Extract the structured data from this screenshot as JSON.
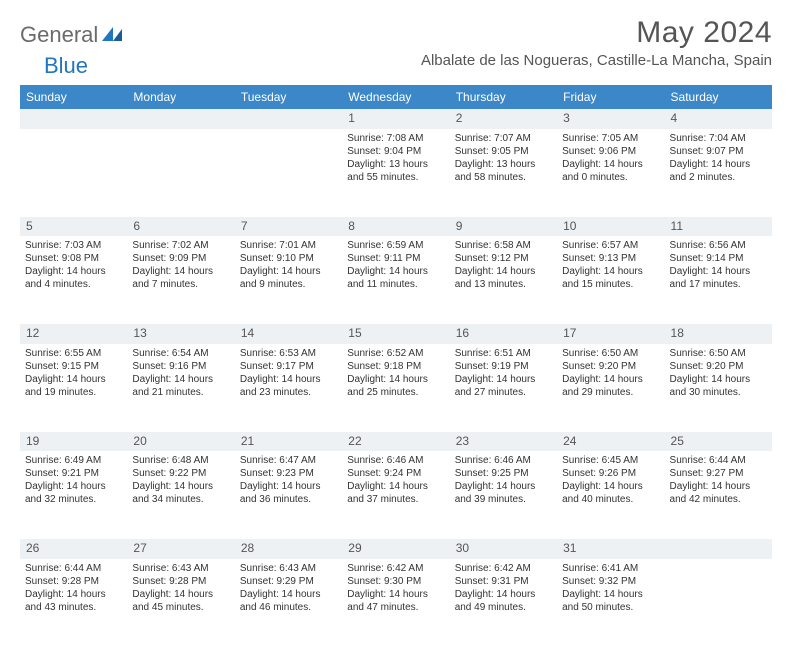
{
  "logo": {
    "part1": "General",
    "part2": "Blue"
  },
  "title": "May 2024",
  "location": "Albalate de las Nogueras, Castille-La Mancha, Spain",
  "colors": {
    "header_bg": "#3b87c8",
    "header_text": "#ffffff",
    "daynum_bg": "#eef1f3",
    "body_text": "#333333",
    "title_text": "#555555",
    "logo_gray": "#6b6b6b",
    "logo_blue": "#2176c0"
  },
  "weekdays": [
    "Sunday",
    "Monday",
    "Tuesday",
    "Wednesday",
    "Thursday",
    "Friday",
    "Saturday"
  ],
  "weeks": [
    {
      "nums": [
        "",
        "",
        "",
        "1",
        "2",
        "3",
        "4"
      ],
      "cells": [
        null,
        null,
        null,
        {
          "sunrise": "Sunrise: 7:08 AM",
          "sunset": "Sunset: 9:04 PM",
          "day1": "Daylight: 13 hours",
          "day2": "and 55 minutes."
        },
        {
          "sunrise": "Sunrise: 7:07 AM",
          "sunset": "Sunset: 9:05 PM",
          "day1": "Daylight: 13 hours",
          "day2": "and 58 minutes."
        },
        {
          "sunrise": "Sunrise: 7:05 AM",
          "sunset": "Sunset: 9:06 PM",
          "day1": "Daylight: 14 hours",
          "day2": "and 0 minutes."
        },
        {
          "sunrise": "Sunrise: 7:04 AM",
          "sunset": "Sunset: 9:07 PM",
          "day1": "Daylight: 14 hours",
          "day2": "and 2 minutes."
        }
      ]
    },
    {
      "nums": [
        "5",
        "6",
        "7",
        "8",
        "9",
        "10",
        "11"
      ],
      "cells": [
        {
          "sunrise": "Sunrise: 7:03 AM",
          "sunset": "Sunset: 9:08 PM",
          "day1": "Daylight: 14 hours",
          "day2": "and 4 minutes."
        },
        {
          "sunrise": "Sunrise: 7:02 AM",
          "sunset": "Sunset: 9:09 PM",
          "day1": "Daylight: 14 hours",
          "day2": "and 7 minutes."
        },
        {
          "sunrise": "Sunrise: 7:01 AM",
          "sunset": "Sunset: 9:10 PM",
          "day1": "Daylight: 14 hours",
          "day2": "and 9 minutes."
        },
        {
          "sunrise": "Sunrise: 6:59 AM",
          "sunset": "Sunset: 9:11 PM",
          "day1": "Daylight: 14 hours",
          "day2": "and 11 minutes."
        },
        {
          "sunrise": "Sunrise: 6:58 AM",
          "sunset": "Sunset: 9:12 PM",
          "day1": "Daylight: 14 hours",
          "day2": "and 13 minutes."
        },
        {
          "sunrise": "Sunrise: 6:57 AM",
          "sunset": "Sunset: 9:13 PM",
          "day1": "Daylight: 14 hours",
          "day2": "and 15 minutes."
        },
        {
          "sunrise": "Sunrise: 6:56 AM",
          "sunset": "Sunset: 9:14 PM",
          "day1": "Daylight: 14 hours",
          "day2": "and 17 minutes."
        }
      ]
    },
    {
      "nums": [
        "12",
        "13",
        "14",
        "15",
        "16",
        "17",
        "18"
      ],
      "cells": [
        {
          "sunrise": "Sunrise: 6:55 AM",
          "sunset": "Sunset: 9:15 PM",
          "day1": "Daylight: 14 hours",
          "day2": "and 19 minutes."
        },
        {
          "sunrise": "Sunrise: 6:54 AM",
          "sunset": "Sunset: 9:16 PM",
          "day1": "Daylight: 14 hours",
          "day2": "and 21 minutes."
        },
        {
          "sunrise": "Sunrise: 6:53 AM",
          "sunset": "Sunset: 9:17 PM",
          "day1": "Daylight: 14 hours",
          "day2": "and 23 minutes."
        },
        {
          "sunrise": "Sunrise: 6:52 AM",
          "sunset": "Sunset: 9:18 PM",
          "day1": "Daylight: 14 hours",
          "day2": "and 25 minutes."
        },
        {
          "sunrise": "Sunrise: 6:51 AM",
          "sunset": "Sunset: 9:19 PM",
          "day1": "Daylight: 14 hours",
          "day2": "and 27 minutes."
        },
        {
          "sunrise": "Sunrise: 6:50 AM",
          "sunset": "Sunset: 9:20 PM",
          "day1": "Daylight: 14 hours",
          "day2": "and 29 minutes."
        },
        {
          "sunrise": "Sunrise: 6:50 AM",
          "sunset": "Sunset: 9:20 PM",
          "day1": "Daylight: 14 hours",
          "day2": "and 30 minutes."
        }
      ]
    },
    {
      "nums": [
        "19",
        "20",
        "21",
        "22",
        "23",
        "24",
        "25"
      ],
      "cells": [
        {
          "sunrise": "Sunrise: 6:49 AM",
          "sunset": "Sunset: 9:21 PM",
          "day1": "Daylight: 14 hours",
          "day2": "and 32 minutes."
        },
        {
          "sunrise": "Sunrise: 6:48 AM",
          "sunset": "Sunset: 9:22 PM",
          "day1": "Daylight: 14 hours",
          "day2": "and 34 minutes."
        },
        {
          "sunrise": "Sunrise: 6:47 AM",
          "sunset": "Sunset: 9:23 PM",
          "day1": "Daylight: 14 hours",
          "day2": "and 36 minutes."
        },
        {
          "sunrise": "Sunrise: 6:46 AM",
          "sunset": "Sunset: 9:24 PM",
          "day1": "Daylight: 14 hours",
          "day2": "and 37 minutes."
        },
        {
          "sunrise": "Sunrise: 6:46 AM",
          "sunset": "Sunset: 9:25 PM",
          "day1": "Daylight: 14 hours",
          "day2": "and 39 minutes."
        },
        {
          "sunrise": "Sunrise: 6:45 AM",
          "sunset": "Sunset: 9:26 PM",
          "day1": "Daylight: 14 hours",
          "day2": "and 40 minutes."
        },
        {
          "sunrise": "Sunrise: 6:44 AM",
          "sunset": "Sunset: 9:27 PM",
          "day1": "Daylight: 14 hours",
          "day2": "and 42 minutes."
        }
      ]
    },
    {
      "nums": [
        "26",
        "27",
        "28",
        "29",
        "30",
        "31",
        ""
      ],
      "cells": [
        {
          "sunrise": "Sunrise: 6:44 AM",
          "sunset": "Sunset: 9:28 PM",
          "day1": "Daylight: 14 hours",
          "day2": "and 43 minutes."
        },
        {
          "sunrise": "Sunrise: 6:43 AM",
          "sunset": "Sunset: 9:28 PM",
          "day1": "Daylight: 14 hours",
          "day2": "and 45 minutes."
        },
        {
          "sunrise": "Sunrise: 6:43 AM",
          "sunset": "Sunset: 9:29 PM",
          "day1": "Daylight: 14 hours",
          "day2": "and 46 minutes."
        },
        {
          "sunrise": "Sunrise: 6:42 AM",
          "sunset": "Sunset: 9:30 PM",
          "day1": "Daylight: 14 hours",
          "day2": "and 47 minutes."
        },
        {
          "sunrise": "Sunrise: 6:42 AM",
          "sunset": "Sunset: 9:31 PM",
          "day1": "Daylight: 14 hours",
          "day2": "and 49 minutes."
        },
        {
          "sunrise": "Sunrise: 6:41 AM",
          "sunset": "Sunset: 9:32 PM",
          "day1": "Daylight: 14 hours",
          "day2": "and 50 minutes."
        },
        null
      ]
    }
  ]
}
